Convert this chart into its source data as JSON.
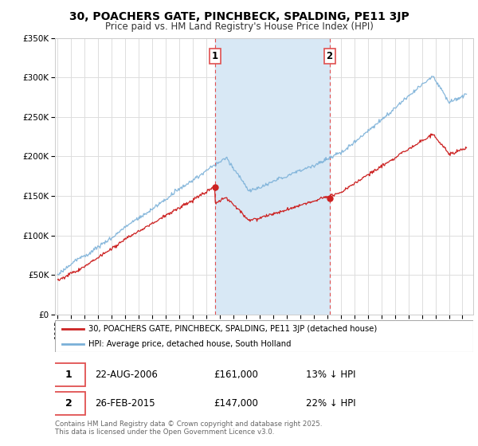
{
  "title": "30, POACHERS GATE, PINCHBECK, SPALDING, PE11 3JP",
  "subtitle": "Price paid vs. HM Land Registry's House Price Index (HPI)",
  "legend_label_red": "30, POACHERS GATE, PINCHBECK, SPALDING, PE11 3JP (detached house)",
  "legend_label_blue": "HPI: Average price, detached house, South Holland",
  "sale1_date": "22-AUG-2006",
  "sale1_price": "£161,000",
  "sale1_hpi": "13% ↓ HPI",
  "sale2_date": "26-FEB-2015",
  "sale2_price": "£147,000",
  "sale2_hpi": "22% ↓ HPI",
  "footer": "Contains HM Land Registry data © Crown copyright and database right 2025.\nThis data is licensed under the Open Government Licence v3.0.",
  "sale1_x": 2006.65,
  "sale2_x": 2015.15,
  "ylim_min": 0,
  "ylim_max": 350000,
  "fig_bg": "#ffffff",
  "plot_bg": "#ffffff",
  "line_color_red": "#cc2222",
  "line_color_blue": "#7ab0d8",
  "shade_color": "#d8e8f5",
  "vline_color": "#e05050",
  "grid_color": "#dddddd"
}
